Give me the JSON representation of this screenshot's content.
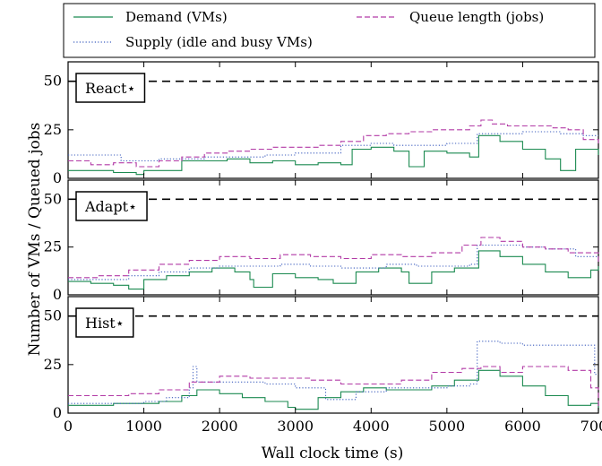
{
  "figure": {
    "ylabel": "Number of VMs / Queued jobs",
    "xlabel": "Wall clock time (s)",
    "legend": [
      {
        "label": "Demand (VMs)",
        "color": "#1b8a50",
        "dash": "solid"
      },
      {
        "label": "Supply (idle and busy VMs)",
        "color": "#3f5fbf",
        "dash": "dotted"
      },
      {
        "label": "Queue length (jobs)",
        "color": "#b23aa6",
        "dash": "dashed"
      }
    ],
    "colors": {
      "demand": "#1b8a50",
      "supply": "#3f5fbf",
      "queue": "#b23aa6",
      "reference": "#000000"
    }
  },
  "chart_data": [
    {
      "type": "line",
      "panel_label": "React⋆",
      "xlim": [
        0,
        7000
      ],
      "ylim": [
        0,
        60
      ],
      "yticks": [
        0,
        25,
        50
      ],
      "xticks": [
        0,
        1000,
        2000,
        3000,
        4000,
        5000,
        6000,
        7000
      ],
      "reference_line": 50,
      "series": [
        {
          "name": "Demand (VMs)",
          "x": [
            0,
            300,
            600,
            900,
            1000,
            1200,
            1500,
            1800,
            2100,
            2400,
            2700,
            3000,
            3300,
            3600,
            3700,
            3750,
            4000,
            4300,
            4500,
            4700,
            5000,
            5300,
            5390,
            5420,
            5700,
            6000,
            6300,
            6500,
            6700,
            7000
          ],
          "y": [
            4,
            4,
            3,
            2,
            4,
            4,
            9,
            9,
            10,
            8,
            9,
            7,
            8,
            7,
            7,
            15,
            16,
            14,
            6,
            14,
            13,
            11,
            11,
            22,
            19,
            15,
            10,
            4,
            15,
            12
          ]
        },
        {
          "name": "Supply (idle and busy VMs)",
          "x": [
            0,
            500,
            700,
            1000,
            1200,
            1500,
            1800,
            2000,
            2300,
            2600,
            3000,
            3300,
            3600,
            3750,
            4000,
            4300,
            4600,
            5000,
            5300,
            5400,
            5700,
            6000,
            6300,
            6500,
            6800,
            7000
          ],
          "y": [
            12,
            12,
            9,
            9,
            10,
            10,
            11,
            11,
            11,
            12,
            13,
            13,
            17,
            17,
            18,
            17,
            17,
            18,
            18,
            23,
            23,
            24,
            24,
            23,
            22,
            22
          ]
        },
        {
          "name": "Queue length (jobs)",
          "x": [
            0,
            300,
            600,
            900,
            1200,
            1500,
            1800,
            2100,
            2400,
            2700,
            3000,
            3300,
            3600,
            3900,
            4200,
            4500,
            4800,
            5100,
            5300,
            5450,
            5600,
            5800,
            6100,
            6400,
            6600,
            6800,
            7000
          ],
          "y": [
            9,
            7,
            8,
            6,
            9,
            11,
            13,
            14,
            15,
            16,
            16,
            17,
            19,
            22,
            23,
            24,
            25,
            25,
            27,
            30,
            28,
            27,
            27,
            26,
            25,
            20,
            18
          ]
        }
      ]
    },
    {
      "type": "line",
      "panel_label": "Adapt⋆",
      "xlim": [
        0,
        7000
      ],
      "ylim": [
        0,
        60
      ],
      "yticks": [
        0,
        25,
        50
      ],
      "xticks": [
        0,
        1000,
        2000,
        3000,
        4000,
        5000,
        6000,
        7000
      ],
      "reference_line": 50,
      "series": [
        {
          "name": "Demand (VMs)",
          "x": [
            0,
            300,
            600,
            800,
            1000,
            1300,
            1600,
            1900,
            2200,
            2400,
            2450,
            2700,
            3000,
            3300,
            3500,
            3800,
            4100,
            4400,
            4500,
            4800,
            5100,
            5390,
            5420,
            5700,
            6000,
            6300,
            6600,
            6900,
            7000
          ],
          "y": [
            7,
            6,
            5,
            3,
            8,
            10,
            12,
            14,
            12,
            8,
            4,
            11,
            9,
            8,
            6,
            12,
            14,
            12,
            6,
            12,
            14,
            14,
            23,
            20,
            16,
            12,
            9,
            13,
            15
          ]
        },
        {
          "name": "Supply (idle and busy VMs)",
          "x": [
            0,
            400,
            800,
            1200,
            1600,
            2000,
            2400,
            2800,
            3200,
            3600,
            3800,
            4200,
            4600,
            5000,
            5300,
            5400,
            5700,
            6000,
            6300,
            6700,
            7000
          ],
          "y": [
            8,
            8,
            10,
            12,
            14,
            15,
            15,
            16,
            15,
            14,
            14,
            16,
            15,
            15,
            16,
            26,
            26,
            25,
            24,
            20,
            17
          ]
        },
        {
          "name": "Queue length (jobs)",
          "x": [
            0,
            400,
            800,
            1200,
            1600,
            2000,
            2400,
            2800,
            3200,
            3600,
            4000,
            4400,
            4800,
            5200,
            5450,
            5700,
            6000,
            6300,
            6600,
            7000
          ],
          "y": [
            9,
            10,
            13,
            16,
            18,
            20,
            19,
            21,
            20,
            19,
            21,
            20,
            22,
            26,
            30,
            28,
            25,
            24,
            22,
            17
          ]
        }
      ]
    },
    {
      "type": "line",
      "panel_label": "Hist⋆",
      "xlim": [
        0,
        7000
      ],
      "ylim": [
        0,
        60
      ],
      "yticks": [
        0,
        25,
        50
      ],
      "xticks": [
        0,
        1000,
        2000,
        3000,
        4000,
        5000,
        6000,
        7000
      ],
      "reference_line": 50,
      "series": [
        {
          "name": "Demand (VMs)",
          "x": [
            0,
            300,
            600,
            900,
            1200,
            1500,
            1700,
            2000,
            2300,
            2600,
            2900,
            3000,
            3300,
            3600,
            3900,
            4200,
            4500,
            4800,
            5100,
            5390,
            5420,
            5700,
            6000,
            6300,
            6600,
            6900,
            7000
          ],
          "y": [
            4,
            4,
            5,
            5,
            6,
            9,
            12,
            10,
            8,
            6,
            3,
            2,
            8,
            11,
            13,
            12,
            12,
            14,
            17,
            17,
            22,
            19,
            14,
            9,
            4,
            5,
            1
          ]
        },
        {
          "name": "Supply (idle and busy VMs)",
          "x": [
            0,
            500,
            1000,
            1300,
            1600,
            1650,
            1700,
            2000,
            2300,
            2600,
            3000,
            3300,
            3400,
            3800,
            4200,
            4600,
            5000,
            5300,
            5400,
            5700,
            6000,
            6400,
            6900,
            6950,
            7000
          ],
          "y": [
            5,
            5,
            6,
            8,
            13,
            24,
            16,
            16,
            16,
            15,
            13,
            13,
            7,
            11,
            13,
            13,
            14,
            15,
            37,
            36,
            35,
            35,
            35,
            20,
            20
          ]
        },
        {
          "name": "Queue length (jobs)",
          "x": [
            0,
            400,
            800,
            1200,
            1600,
            2000,
            2400,
            2800,
            3200,
            3600,
            4000,
            4400,
            4800,
            5200,
            5450,
            5700,
            6000,
            6300,
            6600,
            6900,
            7000
          ],
          "y": [
            9,
            9,
            10,
            12,
            16,
            19,
            18,
            18,
            17,
            15,
            15,
            17,
            21,
            23,
            24,
            21,
            24,
            24,
            22,
            13,
            2
          ]
        }
      ]
    }
  ]
}
